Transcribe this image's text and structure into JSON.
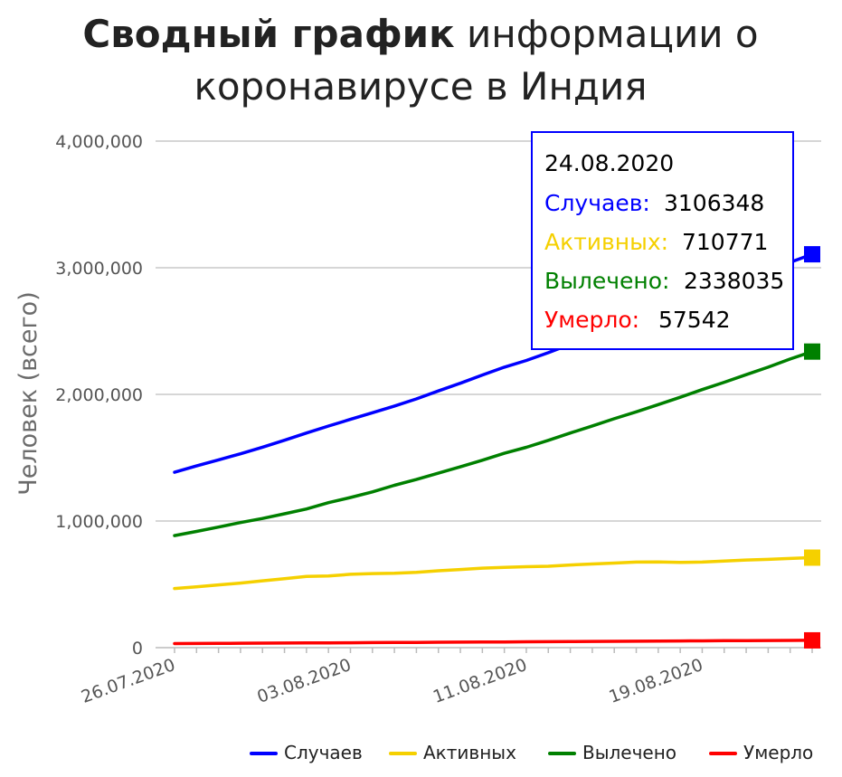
{
  "chart_data": {
    "type": "line",
    "title_bold": "Сводный график",
    "title_rest": "информации о",
    "title_line2": "коронавирусе в Индия",
    "ylabel": "Человек (всего)",
    "ylim": [
      0,
      4000000
    ],
    "y_ticks": [
      0,
      1000000,
      2000000,
      3000000,
      4000000
    ],
    "y_tick_labels": [
      "0",
      "1,000,000",
      "2,000,000",
      "3,000,000",
      "4,000,000"
    ],
    "x_tick_labels": [
      "26.07.2020",
      "03.08.2020",
      "11.08.2020",
      "19.08.2020"
    ],
    "x_tick_index": [
      0,
      8,
      16,
      24
    ],
    "x": [
      "26.07.2020",
      "27.07.2020",
      "28.07.2020",
      "29.07.2020",
      "30.07.2020",
      "31.07.2020",
      "01.08.2020",
      "02.08.2020",
      "03.08.2020",
      "04.08.2020",
      "05.08.2020",
      "06.08.2020",
      "07.08.2020",
      "08.08.2020",
      "09.08.2020",
      "10.08.2020",
      "11.08.2020",
      "12.08.2020",
      "13.08.2020",
      "14.08.2020",
      "15.08.2020",
      "16.08.2020",
      "17.08.2020",
      "18.08.2020",
      "19.08.2020",
      "20.08.2020",
      "21.08.2020",
      "22.08.2020",
      "23.08.2020",
      "24.08.2020"
    ],
    "grid": true,
    "legend_position": "bottom-right",
    "series": [
      {
        "name": "Случаев",
        "color": "#0000ff",
        "values": [
          1385000,
          1435000,
          1483000,
          1531000,
          1583000,
          1638000,
          1695000,
          1750000,
          1803000,
          1855000,
          1908000,
          1964000,
          2027000,
          2088000,
          2153000,
          2215000,
          2268000,
          2329000,
          2396000,
          2461000,
          2526000,
          2589000,
          2647000,
          2702000,
          2767000,
          2836000,
          2905000,
          2975000,
          3043000,
          3106348
        ]
      },
      {
        "name": "Активных",
        "color": "#f5d000",
        "values": [
          467000,
          481000,
          496000,
          510000,
          528000,
          545000,
          563000,
          566000,
          579000,
          585000,
          587000,
          595000,
          607000,
          617000,
          628000,
          634000,
          639000,
          643000,
          653000,
          661000,
          668000,
          676000,
          677000,
          673000,
          676000,
          684000,
          692000,
          697000,
          704000,
          710771
        ]
      },
      {
        "name": "Вылечено",
        "color": "#008000",
        "values": [
          885000,
          918000,
          952000,
          988000,
          1020000,
          1057000,
          1095000,
          1145000,
          1186000,
          1230000,
          1282000,
          1328000,
          1378000,
          1428000,
          1480000,
          1535000,
          1582000,
          1637000,
          1695000,
          1751000,
          1808000,
          1862000,
          1919000,
          1977000,
          2038000,
          2096000,
          2156000,
          2215000,
          2279000,
          2338035
        ]
      },
      {
        "name": "Умерло",
        "color": "#ff0000",
        "values": [
          32000,
          33000,
          33500,
          34900,
          35700,
          36500,
          37400,
          38100,
          38900,
          39800,
          40700,
          41600,
          42500,
          43400,
          44400,
          45300,
          46100,
          47100,
          48000,
          49000,
          49900,
          50900,
          51800,
          52900,
          53900,
          54800,
          55800,
          56700,
          57100,
          57542
        ]
      }
    ],
    "tooltip": {
      "date": "24.08.2020",
      "rows": [
        {
          "label": "Случаев:",
          "value": "3106348",
          "color": "#0000ff"
        },
        {
          "label": "Активных:",
          "value": "710771",
          "color": "#f5d000"
        },
        {
          "label": "Вылечено:",
          "value": "2338035",
          "color": "#008000"
        },
        {
          "label": "Умерло:",
          "value": "57542",
          "color": "#ff0000"
        }
      ]
    }
  }
}
